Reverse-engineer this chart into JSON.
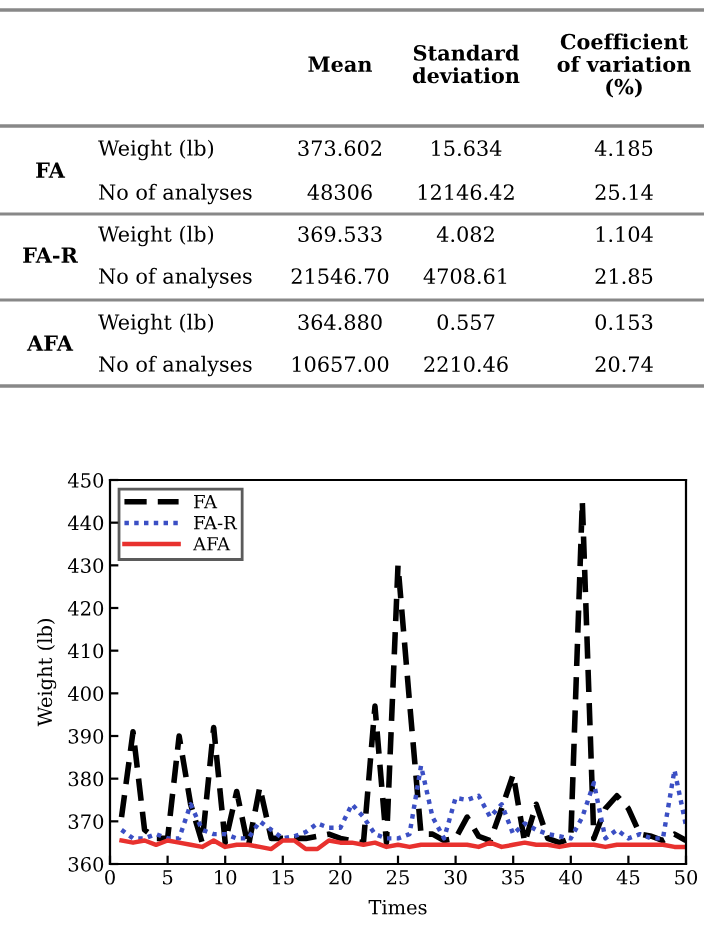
{
  "chart_data": {
    "type": "line",
    "xlabel": "Times",
    "ylabel": "Weight (lb)",
    "xlim": [
      0,
      50
    ],
    "xticks": [
      0,
      5,
      10,
      15,
      20,
      25,
      30,
      35,
      40,
      45,
      50
    ],
    "ylim": [
      360,
      450
    ],
    "yticks": [
      360,
      370,
      380,
      390,
      400,
      410,
      420,
      430,
      440,
      450
    ],
    "grid": false,
    "legend": "top left",
    "x": [
      1,
      2,
      3,
      4,
      5,
      6,
      7,
      8,
      9,
      10,
      11,
      12,
      13,
      14,
      15,
      16,
      17,
      18,
      19,
      20,
      21,
      22,
      23,
      24,
      25,
      26,
      27,
      28,
      29,
      30,
      31,
      32,
      33,
      34,
      35,
      36,
      37,
      38,
      39,
      40,
      41,
      42,
      43,
      44,
      45,
      46,
      47,
      48,
      49,
      50
    ],
    "series": [
      {
        "name": "FA",
        "color": "#000000",
        "line_style": "dashed",
        "values": [
          371,
          391,
          368,
          366,
          366,
          390,
          374,
          365,
          392,
          365,
          377,
          364,
          378,
          366,
          366,
          366,
          366,
          366.5,
          367,
          366,
          365.5,
          365,
          397,
          365,
          430,
          398,
          367,
          367,
          365.5,
          366,
          371,
          366.5,
          365.5,
          373,
          381,
          365,
          374,
          366,
          365,
          366,
          445,
          366,
          373,
          376,
          373,
          367,
          366.5,
          365.5,
          367,
          365.5
        ]
      },
      {
        "name": "FA-R",
        "color": "#3b4fc4",
        "line_style": "dotted",
        "values": [
          368,
          366,
          366,
          367,
          366,
          366,
          374,
          368,
          367,
          367,
          366,
          366,
          370,
          368,
          366,
          366.5,
          367.5,
          369.5,
          368.5,
          368.5,
          374,
          371,
          367,
          366,
          366,
          367,
          383,
          371,
          366,
          375.5,
          375,
          376,
          371,
          374,
          367,
          369.5,
          368,
          367,
          366.5,
          366,
          371,
          379,
          366,
          368,
          366,
          367,
          366,
          366,
          382,
          369
        ]
      },
      {
        "name": "AFA",
        "color": "#e8312e",
        "line_style": "solid",
        "values": [
          365.5,
          365,
          365.5,
          364.5,
          365.5,
          365,
          364.5,
          364,
          365.5,
          364,
          364.5,
          364.5,
          364,
          363.5,
          365.5,
          365.5,
          363.5,
          363.5,
          365.5,
          365,
          365,
          364.5,
          365,
          364,
          364.5,
          364,
          364.5,
          364.5,
          364.5,
          364.5,
          364.5,
          364,
          365,
          364,
          364.5,
          365,
          364.5,
          364.5,
          364,
          364.5,
          364.5,
          364.5,
          364,
          364.5,
          364.5,
          364.5,
          364.5,
          364.5,
          364,
          364
        ]
      }
    ],
    "annotations": [
      "Mean",
      "Standard\ndeviation",
      "Coefficient\nof variation\n(%)",
      "FA",
      "Weight (lb)",
      "373.602",
      "15.634",
      "4.185",
      "No of analyses",
      "48306",
      "12146.42",
      "25.14",
      "FA-R",
      "Weight (lb)",
      "369.533",
      "4.082",
      "1.104",
      "No of analyses",
      "21546.70",
      "4708.61",
      "21.85",
      "AFA",
      "Weight (lb)",
      "364.880",
      "0.557",
      "0.153",
      "No of analyses",
      "10657.00",
      "2210.46",
      "20.74"
    ]
  }
}
